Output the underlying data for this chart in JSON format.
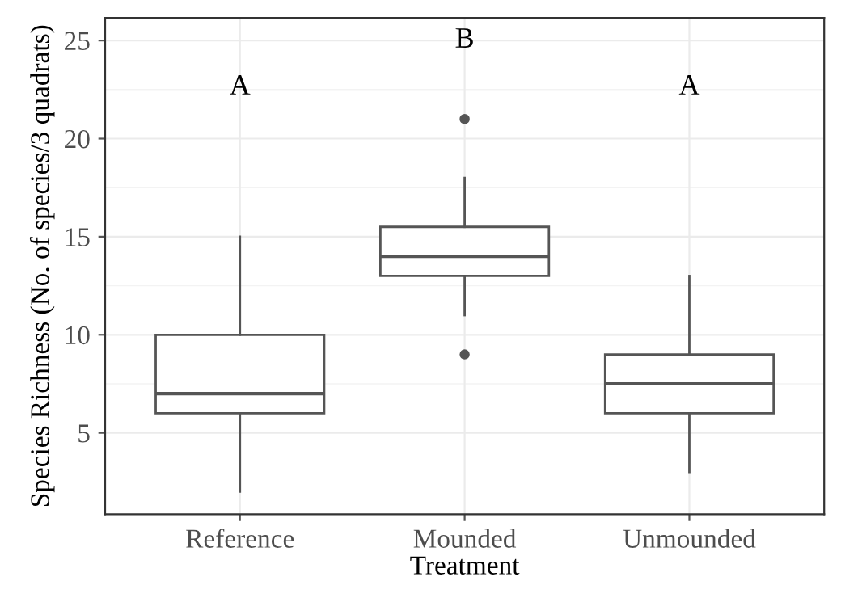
{
  "chart_data": {
    "type": "box",
    "xlabel": "Treatment",
    "ylabel": "Species Richness (No. of species/3 quadrats)",
    "categories": [
      "Reference",
      "Mounded",
      "Unmounded"
    ],
    "boxes": [
      {
        "low": 2,
        "q1": 6,
        "median": 7,
        "q3": 10,
        "high": 15
      },
      {
        "low": 11,
        "q1": 13,
        "median": 14,
        "q3": 15.5,
        "high": 18,
        "outliers": [
          9,
          21
        ]
      },
      {
        "low": 3,
        "q1": 6,
        "median": 7.5,
        "q3": 9,
        "high": 13
      }
    ],
    "annotations": [
      "A",
      "B",
      "A"
    ],
    "ylim": [
      0.85,
      26.15
    ],
    "yticks": [
      5,
      10,
      15,
      20,
      25
    ],
    "grid": true
  }
}
